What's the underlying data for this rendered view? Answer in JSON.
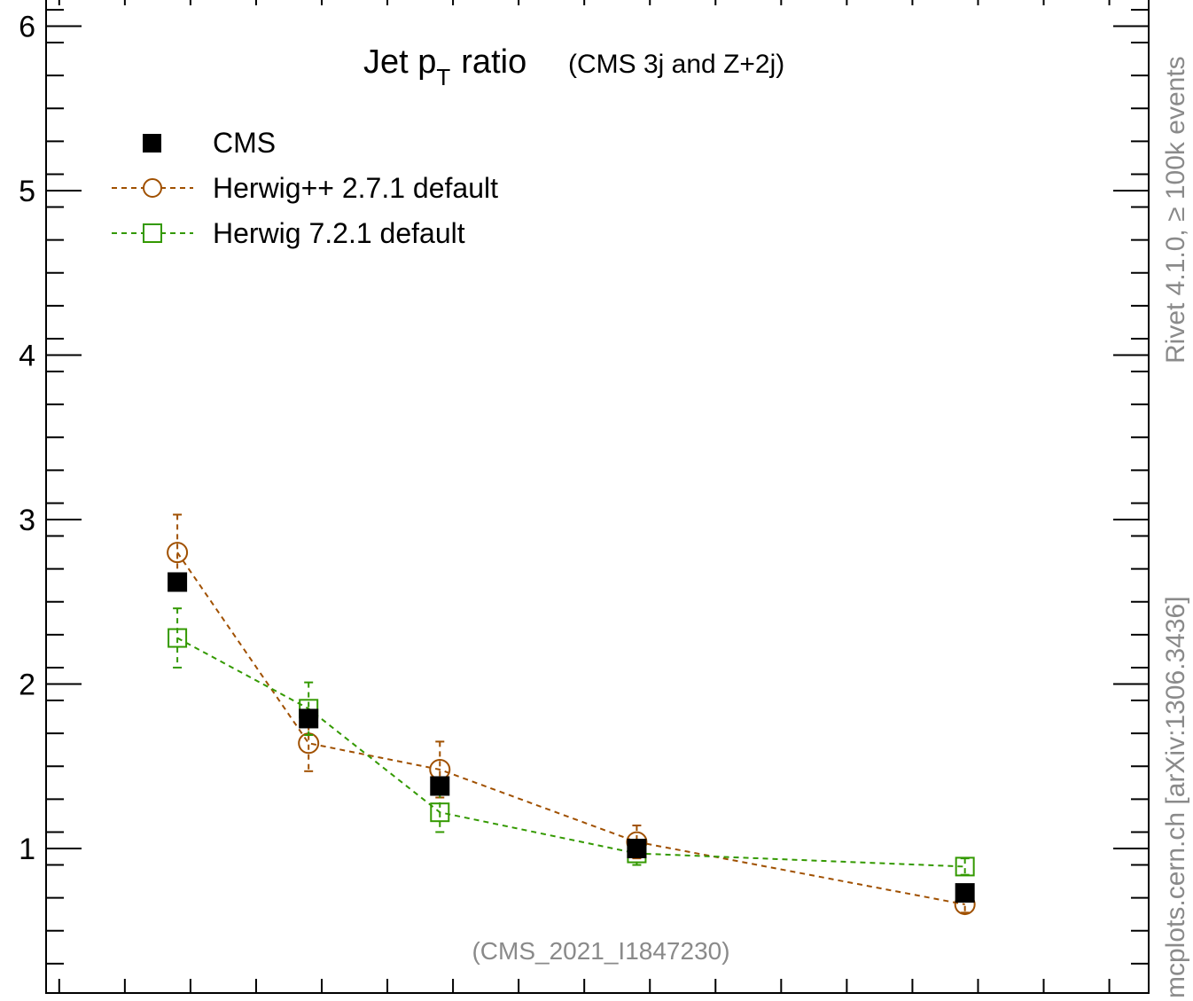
{
  "chart_data": {
    "type": "line",
    "title": "Jet p",
    "title_subscript": "T",
    "title_tail": "ratio",
    "subtitle": "(CMS 3j and Z+2j)",
    "analysis_label": "(CMS_2021_I1847230)",
    "side_label_top": "Rivet 4.1.0, ≥ 100k events",
    "side_label_bottom": "mcplots.cern.ch [arXiv:1306.3436]",
    "ylim": [
      0.25,
      6.15
    ],
    "y_ticks": [
      1,
      2,
      3,
      4,
      5,
      6
    ],
    "y_tick_labels": [
      "1",
      "2",
      "3",
      "4",
      "5",
      "6"
    ],
    "x": [
      0.4,
      1.4,
      2.4,
      3.9,
      6.4
    ],
    "xlim": [
      -0.6,
      7.8
    ],
    "grid": false,
    "legend_position": "top-left",
    "series": [
      {
        "name": "CMS",
        "marker": "filled-square",
        "color": "#000000",
        "values": [
          2.62,
          1.79,
          1.38,
          1.0,
          0.73
        ],
        "errors": [
          0.04,
          0.04,
          0.04,
          0.03,
          0.03
        ]
      },
      {
        "name": "Herwig++ 2.7.1 default",
        "marker": "open-circle",
        "color": "#a05000",
        "values": [
          2.8,
          1.64,
          1.48,
          1.04,
          0.66
        ],
        "errors": [
          0.23,
          0.17,
          0.17,
          0.1,
          0.05
        ]
      },
      {
        "name": "Herwig 7.2.1 default",
        "marker": "open-square",
        "color": "#339900",
        "values": [
          2.28,
          1.85,
          1.22,
          0.97,
          0.89
        ],
        "errors": [
          0.18,
          0.16,
          0.12,
          0.07,
          0.05
        ]
      }
    ]
  }
}
